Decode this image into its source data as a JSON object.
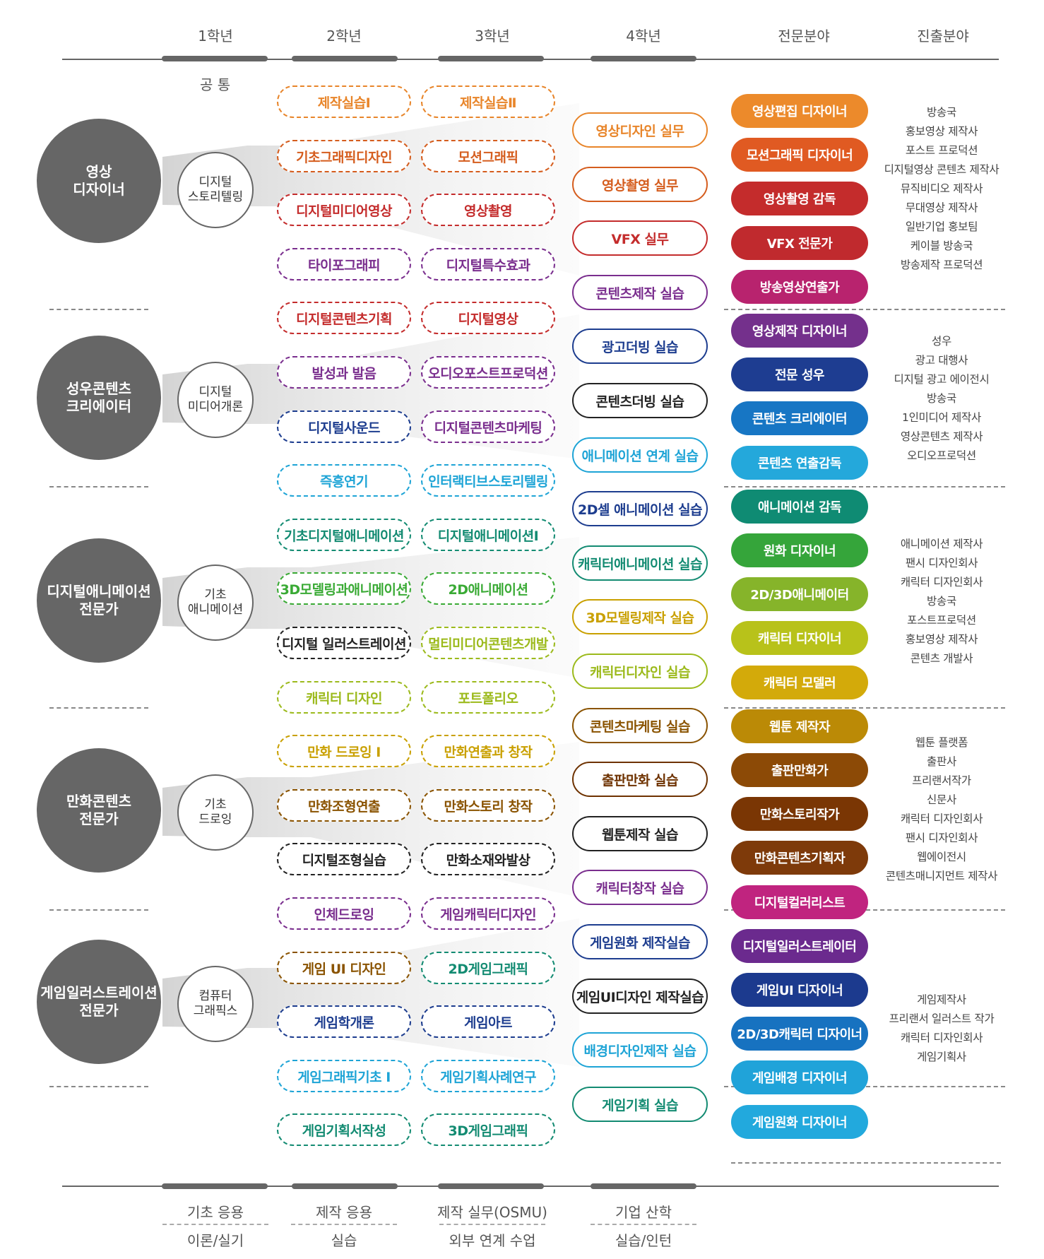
{
  "headers": [
    "1학년",
    "2학년",
    "3학년",
    "4학년",
    "전문분야",
    "진출분야"
  ],
  "common_label": "공 통",
  "colors": {
    "orange": "#e8852a",
    "darkorange": "#d55d1e",
    "red": "#c42c2c",
    "purple": "#7a2e8e",
    "navy": "#1d3d8f",
    "black": "#222222",
    "skyblue": "#1ea4d6",
    "teal": "#138b72",
    "green": "#3aaa35",
    "lime": "#9cba1c",
    "olive": "#c9a000",
    "brown": "#8a5300",
    "darkbrown": "#6e3200",
    "magenta": "#c2227e",
    "blue": "#1773c2",
    "gray": "#666666"
  },
  "tracks": [
    {
      "name": "영상\n디자이너",
      "foundation": "디지털\n스토리텔링"
    },
    {
      "name": "성우콘텐츠\n크리에이터",
      "foundation": "디지털\n미디어개론"
    },
    {
      "name": "디지털애니메이션\n전문가",
      "foundation": "기초\n애니메이션"
    },
    {
      "name": "만화콘텐츠\n전문가",
      "foundation": "기초\n드로잉"
    },
    {
      "name": "게임일러스트레이션\n전문가",
      "foundation": "컴퓨터\n그래픽스"
    }
  ],
  "year2": [
    {
      "label": "제작실습Ⅰ",
      "color": "orange"
    },
    {
      "label": "기초그래픽디자인",
      "color": "darkorange"
    },
    {
      "label": "디지털미디어영상",
      "color": "red"
    },
    {
      "label": "타이포그래피",
      "color": "purple"
    },
    {
      "label": "디지털콘텐츠기획",
      "color": "red"
    },
    {
      "label": "발성과 발음",
      "color": "purple"
    },
    {
      "label": "디지털사운드",
      "color": "navy"
    },
    {
      "label": "즉흥연기",
      "color": "skyblue"
    },
    {
      "label": "기초디지털애니메이션",
      "color": "teal"
    },
    {
      "label": "3D모델링과애니메이션",
      "color": "green"
    },
    {
      "label": "디지털 일러스트레이션",
      "color": "black"
    },
    {
      "label": "캐릭터 디자인",
      "color": "lime"
    },
    {
      "label": "만화 드로잉 I",
      "color": "olive"
    },
    {
      "label": "만화조형연출",
      "color": "brown"
    },
    {
      "label": "디지털조형실습",
      "color": "black"
    },
    {
      "label": "인체드로잉",
      "color": "purple"
    },
    {
      "label": "게임 UI 디자인",
      "color": "brown"
    },
    {
      "label": "게임학개론",
      "color": "navy"
    },
    {
      "label": "게임그래픽기초 I",
      "color": "skyblue"
    },
    {
      "label": "게임기획서작성",
      "color": "teal"
    }
  ],
  "year3": [
    {
      "label": "제작실습Ⅱ",
      "color": "orange"
    },
    {
      "label": "모션그래픽",
      "color": "darkorange"
    },
    {
      "label": "영상촬영",
      "color": "red"
    },
    {
      "label": "디지털특수효과",
      "color": "purple"
    },
    {
      "label": "디지털영상",
      "color": "red"
    },
    {
      "label": "오디오포스트프로덕션",
      "color": "purple"
    },
    {
      "label": "디지털콘텐츠마케팅",
      "color": "purple"
    },
    {
      "label": "인터랙티브스토리텔링",
      "color": "skyblue"
    },
    {
      "label": "디지털애니메이션Ⅰ",
      "color": "teal"
    },
    {
      "label": "2D애니메이션",
      "color": "green"
    },
    {
      "label": "멀티미디어콘텐츠개발",
      "color": "lime"
    },
    {
      "label": "포트폴리오",
      "color": "lime"
    },
    {
      "label": "만화연출과 창작",
      "color": "olive"
    },
    {
      "label": "만화스토리 창작",
      "color": "brown"
    },
    {
      "label": "만화소재와발상",
      "color": "black"
    },
    {
      "label": "게임캐릭터디자인",
      "color": "purple"
    },
    {
      "label": "2D게임그래픽",
      "color": "teal"
    },
    {
      "label": "게임아트",
      "color": "navy"
    },
    {
      "label": "게임기획사례연구",
      "color": "skyblue"
    },
    {
      "label": "3D게임그래픽",
      "color": "teal"
    }
  ],
  "year4": [
    {
      "label": "영상디자인 실무",
      "color": "orange"
    },
    {
      "label": "영상촬영 실무",
      "color": "darkorange"
    },
    {
      "label": "VFX 실무",
      "color": "red"
    },
    {
      "label": "콘텐츠제작 실습",
      "color": "purple"
    },
    {
      "label": "광고더빙 실습",
      "color": "navy"
    },
    {
      "label": "콘텐츠더빙 실습",
      "color": "black"
    },
    {
      "label": "애니메이션 연계 실습",
      "color": "skyblue"
    },
    {
      "label": "2D셀 애니메이션 실습",
      "color": "navy"
    },
    {
      "label": "캐릭터애니메이션 실습",
      "color": "teal"
    },
    {
      "label": "3D모델링제작 실습",
      "color": "olive"
    },
    {
      "label": "캐릭터디자인 실습",
      "color": "lime"
    },
    {
      "label": "콘텐츠마케팅 실습",
      "color": "brown"
    },
    {
      "label": "출판만화 실습",
      "color": "darkbrown"
    },
    {
      "label": "웹툰제작 실습",
      "color": "black"
    },
    {
      "label": "캐릭터창작 실습",
      "color": "purple"
    },
    {
      "label": "게임원화 제작실습",
      "color": "navy"
    },
    {
      "label": "게임UI디자인 제작실습",
      "color": "black"
    },
    {
      "label": "배경디자인제작 실습",
      "color": "skyblue"
    },
    {
      "label": "게임기획 실습",
      "color": "teal"
    }
  ],
  "jobs": [
    {
      "label": "영상편집 디자이너",
      "color": "#ec8a2b"
    },
    {
      "label": "모션그래픽 디자이너",
      "color": "#e05a22"
    },
    {
      "label": "영상촬영 감독",
      "color": "#c42c2c"
    },
    {
      "label": "VFX 전문가",
      "color": "#c02a2e"
    },
    {
      "label": "방송영상연출가",
      "color": "#b8236e"
    },
    {
      "label": "영상제작 디자이너",
      "color": "#74308c"
    },
    {
      "label": "전문 성우",
      "color": "#1e3d91"
    },
    {
      "label": "콘텐츠 크리에이터",
      "color": "#1776c4"
    },
    {
      "label": "콘텐츠 연출감독",
      "color": "#24a8db"
    },
    {
      "label": "애니메이션 감독",
      "color": "#0f8b73"
    },
    {
      "label": "원화 디자이너",
      "color": "#35a53a"
    },
    {
      "label": "2D/3D애니메이터",
      "color": "#86b42a"
    },
    {
      "label": "캐릭터 디자이너",
      "color": "#b8c21a"
    },
    {
      "label": "캐릭터 모델러",
      "color": "#d3aa0a"
    },
    {
      "label": "웹툰 제작자",
      "color": "#bb8a06"
    },
    {
      "label": "출판만화가",
      "color": "#8c4a06"
    },
    {
      "label": "만화스토리작가",
      "color": "#7a3604"
    },
    {
      "label": "만화콘텐츠기획자",
      "color": "#7e3a0a"
    },
    {
      "label": "디지털컬러리스트",
      "color": "#c0247f"
    },
    {
      "label": "디지털일러스트레이터",
      "color": "#6b2a8e"
    },
    {
      "label": "게임UI 디자이너",
      "color": "#1c3a8e"
    },
    {
      "label": "2D/3D캐릭터 디자이너",
      "color": "#1772c0"
    },
    {
      "label": "게임배경 디자이너",
      "color": "#20a3d9"
    },
    {
      "label": "게임원화 디자이너",
      "color": "#22a9dd"
    }
  ],
  "careers": [
    [
      "방송국",
      "홍보영상 제작사",
      "포스트 프로덕션",
      "디지털영상 콘텐츠 제작사",
      "뮤직비디오 제작사",
      "무대영상 제작사",
      "일반기업 홍보팀",
      "케이블 방송국",
      "방송제작 프로덕션"
    ],
    [
      "성우",
      "광고 대행사",
      "디지털 광고 에이전시",
      "방송국",
      "1인미디어 제작사",
      "영상콘텐츠 제작사",
      "오디오프로덕션"
    ],
    [
      "애니메이션 제작사",
      "팬시 디자인회사",
      "캐릭터 디자인회사",
      "방송국",
      "포스트프로덕션",
      "홍보영상 제작사",
      "콘텐츠 개발사"
    ],
    [
      "웹툰 플랫폼",
      "출판사",
      "프리랜서작가",
      "신문사",
      "캐릭터 디자인회사",
      "팬시 디자인회사",
      "웹에이전시",
      "콘텐츠매니지먼트 제작사"
    ],
    [
      "게임제작사",
      "프리랜서 일러스트 작가",
      "캐릭터 디자인회사",
      "게임기획사"
    ]
  ],
  "footer": [
    {
      "top": "기초 응용",
      "bottom": "이론/실기"
    },
    {
      "top": "제작 응용",
      "bottom": "실습"
    },
    {
      "top": "제작 실무(OSMU)",
      "bottom": "외부 연계 수업"
    },
    {
      "top": "기업 산학",
      "bottom": "실습/인턴"
    }
  ]
}
